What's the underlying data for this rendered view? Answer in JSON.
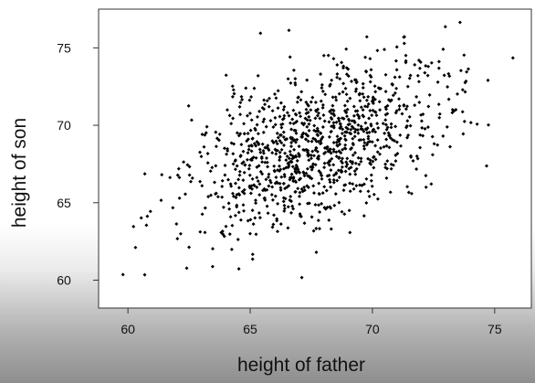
{
  "chart_data": {
    "type": "scatter",
    "title": "",
    "xlabel": "height of father",
    "ylabel": "height of son",
    "xlim": [
      58.8,
      76.5
    ],
    "ylim": [
      58.2,
      77.5
    ],
    "xticks": [
      60,
      65,
      70,
      75
    ],
    "yticks": [
      60,
      65,
      70,
      75
    ],
    "grid": false,
    "legend": "none",
    "marker_color": "#000000",
    "series": [
      {
        "points_count": 1078,
        "x_mean": 67.7,
        "y_mean": 68.7,
        "x_sd": 2.7,
        "y_sd": 2.8,
        "correlation": 0.5,
        "x_range": [
          59.5,
          76.0
        ],
        "y_range": [
          59.0,
          76.7
        ]
      }
    ]
  }
}
